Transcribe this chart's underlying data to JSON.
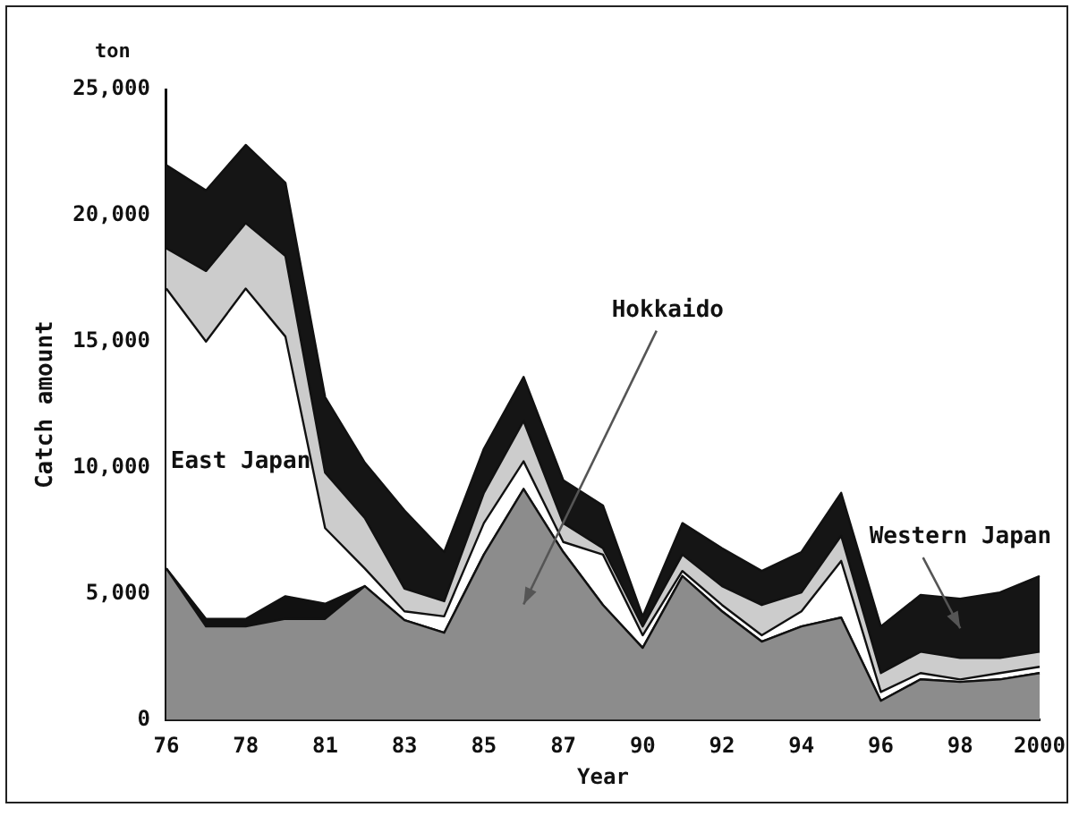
{
  "chart_data": {
    "type": "area",
    "stacked": true,
    "xlabel": "Year",
    "ylabel": "Catch amount",
    "annotations": [
      "ton"
    ],
    "categories": [
      "76",
      null,
      "78",
      null,
      "81",
      null,
      "83",
      null,
      "85",
      null,
      "87",
      null,
      "90",
      null,
      "92",
      null,
      "94",
      null,
      "96",
      null,
      "98",
      null,
      "2000"
    ],
    "ylim": [
      0,
      25000
    ],
    "yticks": [
      {
        "value": 0,
        "label": "0"
      },
      {
        "value": 5000,
        "label": "5,000"
      },
      {
        "value": 10000,
        "label": "10,000"
      },
      {
        "value": 15000,
        "label": "15,000"
      },
      {
        "value": 20000,
        "label": "20,000"
      },
      {
        "value": 25000,
        "label": "25,000"
      }
    ],
    "grid": false,
    "legend": false,
    "series": [
      {
        "name": "Hokkaido",
        "color": "#8c8c8c",
        "values": [
          6000,
          3700,
          3700,
          4000,
          4000,
          5300,
          3950,
          3450,
          6550,
          9150,
          6650,
          4550,
          2850,
          5700,
          4300,
          3100,
          3700,
          4050,
          750,
          1600,
          1500,
          1600,
          1850
        ]
      },
      {
        "color": "#111111",
        "values": [
          0,
          300,
          300,
          900,
          600,
          0,
          0,
          0,
          0,
          0,
          0,
          0,
          0,
          0,
          0,
          0,
          0,
          0,
          0,
          0,
          0,
          0,
          0
        ]
      },
      {
        "name": "East Japan",
        "color": "#ffffff",
        "values": [
          11100,
          11000,
          13100,
          10300,
          3000,
          700,
          350,
          650,
          1250,
          1100,
          400,
          2000,
          500,
          200,
          250,
          250,
          600,
          2250,
          350,
          250,
          100,
          250,
          250
        ]
      },
      {
        "color": "#cccccc",
        "values": [
          1600,
          2800,
          2600,
          3200,
          2200,
          2000,
          900,
          600,
          1200,
          1600,
          750,
          250,
          350,
          650,
          750,
          1200,
          750,
          1000,
          750,
          850,
          850,
          600,
          600
        ]
      },
      {
        "name": "Western Japan",
        "color": "#151515",
        "values": [
          3300,
          3200,
          3100,
          2900,
          3000,
          2200,
          3100,
          1950,
          1750,
          1750,
          1700,
          1700,
          400,
          1250,
          1500,
          1350,
          1600,
          1700,
          1850,
          2250,
          2350,
          2600,
          3000
        ]
      }
    ]
  }
}
